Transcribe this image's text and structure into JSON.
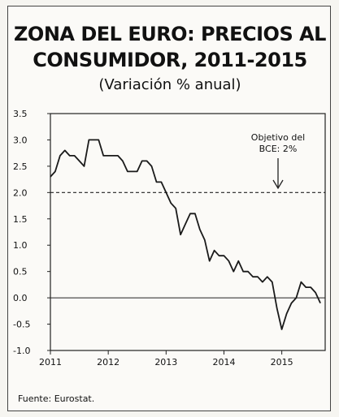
{
  "chart_data": {
    "type": "line",
    "title_line1": "ZONA DEL EURO: PRECIOS AL",
    "title_line2": "CONSUMIDOR, 2011-2015",
    "subtitle": "(Variación % anual)",
    "source": "Fuente: Eurostat.",
    "ylim": [
      -1.0,
      3.5
    ],
    "xlim": [
      2011.0,
      2015.75
    ],
    "y_ticks": [
      "3.5",
      "3.0",
      "2.5",
      "2.0",
      "1.5",
      "1.0",
      "0.5",
      "0.0",
      "-0.5",
      "-1.0"
    ],
    "x_ticks": [
      "2011",
      "2012",
      "2013",
      "2014",
      "2015"
    ],
    "reference_line": {
      "value": 2.0,
      "style": "dashed"
    },
    "annotation": {
      "line1": "Objetivo del",
      "line2": "BCE: 2%"
    },
    "series": [
      {
        "values": [
          2.3,
          2.4,
          2.7,
          2.8,
          2.7,
          2.7,
          2.6,
          2.5,
          3.0,
          3.0,
          3.0,
          2.7,
          2.7,
          2.7,
          2.7,
          2.6,
          2.4,
          2.4,
          2.4,
          2.6,
          2.6,
          2.5,
          2.2,
          2.2,
          2.0,
          1.8,
          1.7,
          1.2,
          1.4,
          1.6,
          1.6,
          1.3,
          1.1,
          0.7,
          0.9,
          0.8,
          0.8,
          0.7,
          0.5,
          0.7,
          0.5,
          0.5,
          0.4,
          0.4,
          0.3,
          0.4,
          0.3,
          -0.2,
          -0.6,
          -0.3,
          -0.1,
          0.0,
          0.3,
          0.2,
          0.2,
          0.1,
          -0.1
        ]
      }
    ]
  },
  "colors": {
    "line": "#1a1a1a",
    "axis": "#222222",
    "background": "#fbfaf7"
  }
}
